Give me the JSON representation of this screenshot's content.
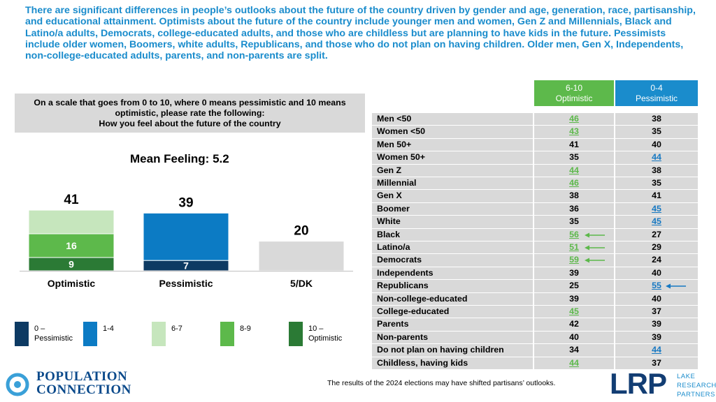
{
  "headline": "There are significant differences in people’s outlooks about the future of the country driven by gender and age, generation, race, partisanship, and educational attainment. Optimists about the future of the country include younger men and women, Gen Z and Millennials, Black and Latino/a adults, Democrats, college-educated adults, and those who are childless but are planning to have kids in the future. Pessimists include older women, Boomers, white adults, Republicans, and those who do not plan on having children. Older men, Gen X, Independents, non-college-educated adults, parents, and non-parents are split.",
  "question": {
    "line1": "On a scale that goes from 0 to 10, where 0 means pessimistic and 10 means",
    "line2": "optimistic, please rate the following:",
    "line3": "How you feel about the future of the country"
  },
  "mean_label": "Mean Feeling: 5.2",
  "chart_data": {
    "type": "bar",
    "stacked": true,
    "categories": [
      "Optimistic",
      "Pessimistic",
      "5/DK"
    ],
    "totals": [
      41,
      39,
      20
    ],
    "series": [
      {
        "name": "0 – Pessimistic",
        "color": "#0d3a63",
        "values": [
          0,
          7,
          0
        ],
        "label": [
          null,
          "7",
          null
        ]
      },
      {
        "name": "1-4",
        "color": "#0c7bc4",
        "values": [
          0,
          32,
          0
        ],
        "label": [
          null,
          null,
          null
        ]
      },
      {
        "name": "6-7",
        "color": "#c6e6bd",
        "values": [
          16,
          0,
          0
        ],
        "label": [
          null,
          null,
          null
        ]
      },
      {
        "name": "8-9",
        "color": "#5db94b",
        "values": [
          16,
          0,
          0
        ],
        "label": [
          "16",
          null,
          null
        ]
      },
      {
        "name": "10 – Optimistic",
        "color": "#2b7a35",
        "values": [
          9,
          0,
          0
        ],
        "label": [
          "9",
          null,
          null
        ]
      },
      {
        "name": "5/DK",
        "color": "#d9d9d9",
        "values": [
          0,
          0,
          20
        ],
        "label": [
          null,
          null,
          null
        ]
      }
    ],
    "ylim": [
      0,
      50
    ]
  },
  "legend": [
    {
      "line1": "0 –",
      "line2": "Pessimistic",
      "color": "#0d3a63"
    },
    {
      "line1": "1-4",
      "line2": "",
      "color": "#0c7bc4"
    },
    {
      "line1": "6-7",
      "line2": "",
      "color": "#c6e6bd"
    },
    {
      "line1": "8-9",
      "line2": "",
      "color": "#5db94b"
    },
    {
      "line1": "10 –",
      "line2": "Optimistic",
      "color": "#2b7a35"
    }
  ],
  "table": {
    "col1": {
      "line1": "6-10",
      "line2": "Optimistic",
      "color": "#5db94b"
    },
    "col2": {
      "line1": "0-4",
      "line2": "Pessimistic",
      "color": "#1a8ccc"
    },
    "rows": [
      {
        "label": "Men <50",
        "opt": "46",
        "pes": "38",
        "hl": "opt",
        "arrow": ""
      },
      {
        "label": "Women <50",
        "opt": "43",
        "pes": "35",
        "hl": "opt",
        "arrow": ""
      },
      {
        "label": "Men 50+",
        "opt": "41",
        "pes": "40",
        "hl": "",
        "arrow": ""
      },
      {
        "label": "Women 50+",
        "opt": "35",
        "pes": "44",
        "hl": "pes",
        "arrow": ""
      },
      {
        "label": "Gen Z",
        "opt": "44",
        "pes": "38",
        "hl": "opt",
        "arrow": ""
      },
      {
        "label": "Millennial",
        "opt": "46",
        "pes": "35",
        "hl": "opt",
        "arrow": ""
      },
      {
        "label": "Gen X",
        "opt": "38",
        "pes": "41",
        "hl": "",
        "arrow": ""
      },
      {
        "label": "Boomer",
        "opt": "36",
        "pes": "45",
        "hl": "pes",
        "arrow": ""
      },
      {
        "label": "White",
        "opt": "35",
        "pes": "45",
        "hl": "pes",
        "arrow": ""
      },
      {
        "label": "Black",
        "opt": "56",
        "pes": "27",
        "hl": "opt",
        "arrow": "opt"
      },
      {
        "label": "Latino/a",
        "opt": "51",
        "pes": "29",
        "hl": "opt",
        "arrow": "opt"
      },
      {
        "label": "Democrats",
        "opt": "59",
        "pes": "24",
        "hl": "opt",
        "arrow": "opt"
      },
      {
        "label": "Independents",
        "opt": "39",
        "pes": "40",
        "hl": "",
        "arrow": ""
      },
      {
        "label": "Republicans",
        "opt": "25",
        "pes": "55",
        "hl": "pes",
        "arrow": "pes"
      },
      {
        "label": "Non-college-educated",
        "opt": "39",
        "pes": "40",
        "hl": "",
        "arrow": ""
      },
      {
        "label": "College-educated",
        "opt": "45",
        "pes": "37",
        "hl": "opt",
        "arrow": ""
      },
      {
        "label": "Parents",
        "opt": "42",
        "pes": "39",
        "hl": "",
        "arrow": ""
      },
      {
        "label": "Non-parents",
        "opt": "40",
        "pes": "39",
        "hl": "",
        "arrow": ""
      },
      {
        "label": "Do not plan on having children",
        "opt": "34",
        "pes": "44",
        "hl": "pes",
        "arrow": ""
      },
      {
        "label": "Childless, having kids",
        "opt": "44",
        "pes": "37",
        "hl": "opt",
        "arrow": ""
      }
    ]
  },
  "footnote": "The results of the 2024 elections may have shifted partisans’ outlooks.",
  "logos": {
    "pc_line1": "POPULATION",
    "pc_line2": "CONNECTION",
    "lrp": "LRP",
    "lrp_line1": "LAKE",
    "lrp_line2": "RESEARCH",
    "lrp_line3": "PARTNERS"
  }
}
